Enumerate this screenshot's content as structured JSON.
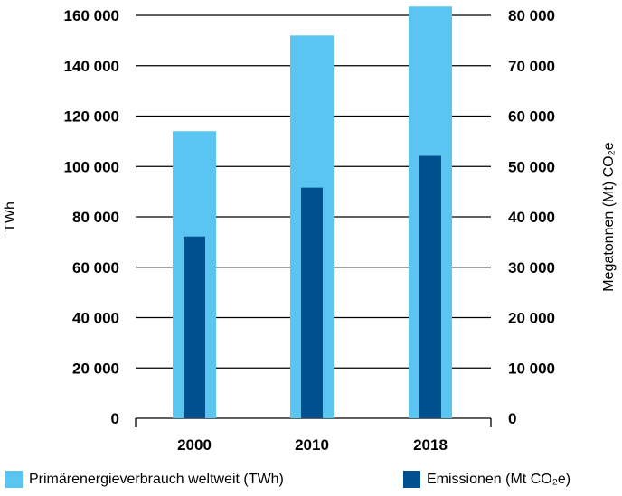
{
  "chart_data": {
    "type": "bar",
    "categories": [
      "2000",
      "2010",
      "2018"
    ],
    "series": [
      {
        "name": "Primärenergieverbrauch weltweit (TWh)",
        "axis": "left",
        "color": "#5bc5f2",
        "values": [
          114000,
          152000,
          163500
        ]
      },
      {
        "name": "Emissionen (Mt CO₂e)",
        "axis": "right",
        "color": "#004f8f",
        "values": [
          36100,
          45800,
          52100
        ]
      }
    ],
    "ylabel": "TWh",
    "y2label": "Megatonnen (Mt) CO₂e",
    "ylim": [
      0,
      160000
    ],
    "y2lim": [
      0,
      80000
    ],
    "yticks": [
      "0",
      "20 000",
      "40 000",
      "60 000",
      "80 000",
      "100 000",
      "120 000",
      "140 000",
      "160 000"
    ],
    "y2ticks": [
      "0",
      "10 000",
      "20 000",
      "30 000",
      "40 000",
      "50 000",
      "60 000",
      "70 000",
      "80 000"
    ],
    "grid": true,
    "legend_position": "bottom"
  }
}
